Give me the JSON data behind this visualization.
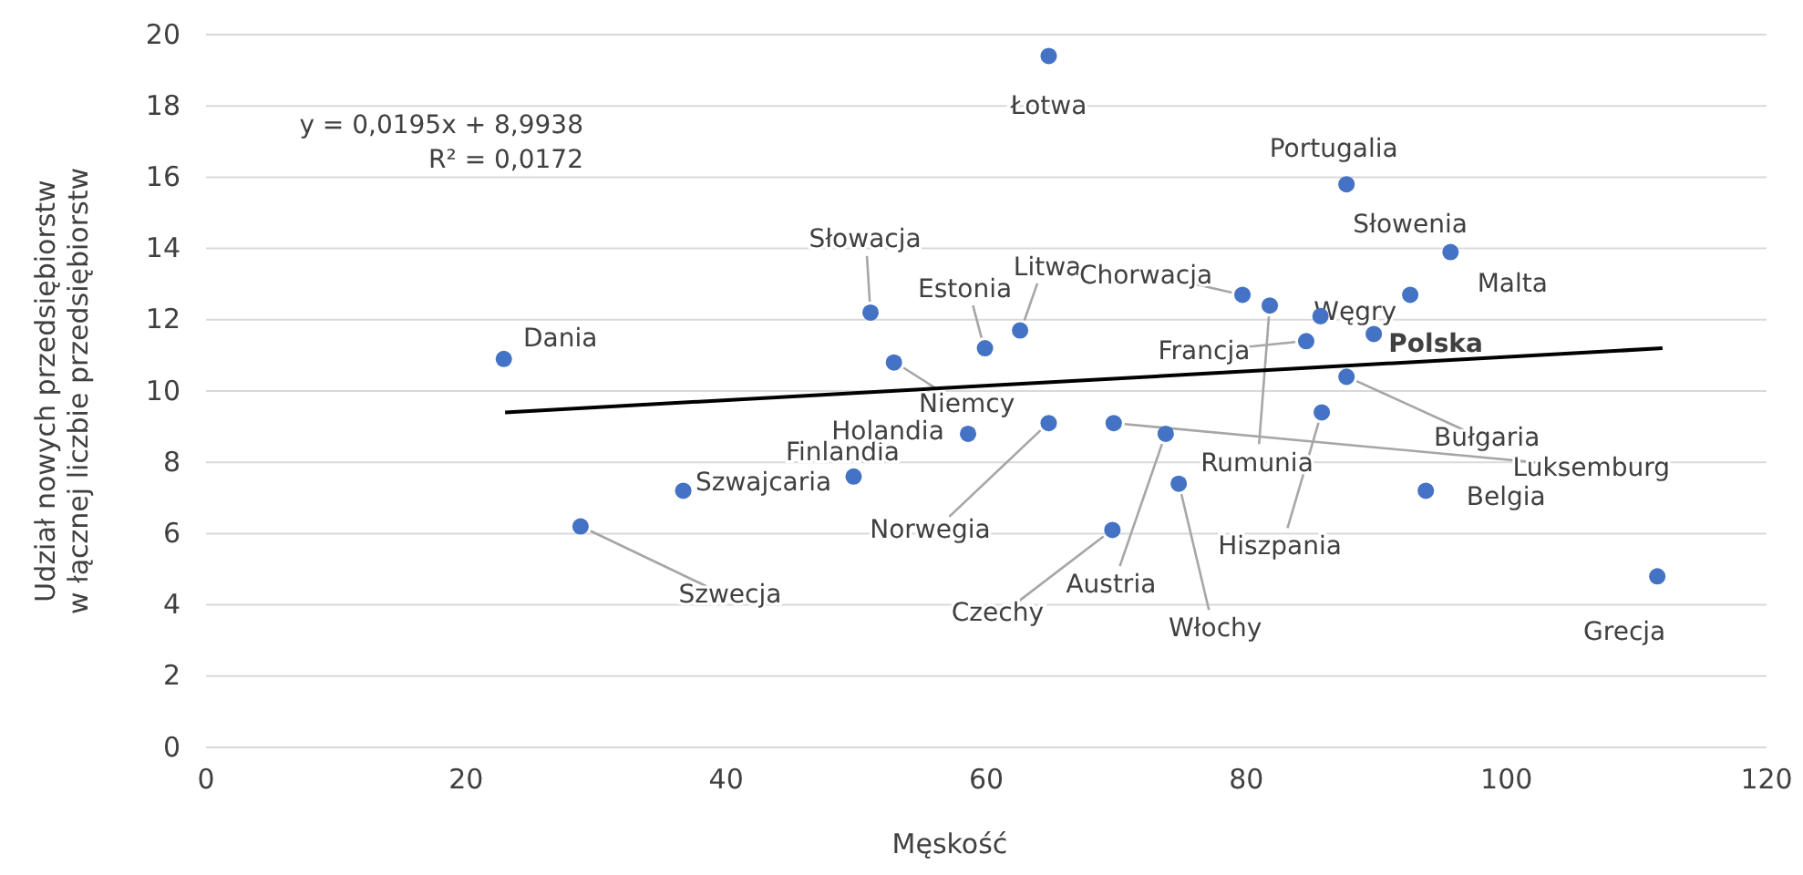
{
  "chart_data": {
    "type": "scatter",
    "xlabel": "Męskość",
    "ylabel": "Udział nowych przedsiębiorstw\nw łącznej liczbie przedsiębiorstw",
    "xlim": [
      0,
      120
    ],
    "xticks": [
      0,
      20,
      40,
      60,
      80,
      100,
      120
    ],
    "ylim": [
      0,
      20
    ],
    "yticks": [
      0,
      2,
      4,
      6,
      8,
      10,
      12,
      14,
      16,
      18,
      20
    ],
    "grid": "y",
    "marker": "circle",
    "series": [
      {
        "color": "#4472c4",
        "x": [
          22.9,
          28.8,
          36.7,
          49.8,
          51.1,
          52.9,
          58.6,
          64.8,
          59.9,
          62.6,
          64.8,
          69.7,
          69.8,
          73.8,
          74.8,
          79.7,
          81.8,
          85.7,
          84.6,
          89.8,
          92.6,
          95.7,
          87.7,
          87.7,
          85.8,
          93.8,
          111.6
        ],
        "values": [
          10.9,
          6.2,
          7.2,
          7.6,
          12.2,
          10.8,
          8.8,
          9.1,
          11.2,
          11.7,
          19.4,
          6.1,
          9.1,
          8.8,
          7.4,
          12.7,
          12.4,
          12.1,
          11.4,
          11.6,
          12.7,
          13.9,
          15.8,
          10.4,
          9.4,
          7.2,
          4.8
        ]
      },
      {
        "type": "line",
        "marker": "none",
        "color": "#000000",
        "x": [
          23,
          112
        ],
        "values": [
          9.4,
          11.2
        ]
      }
    ],
    "annotations": [
      {
        "text": "Dania",
        "x": 22.9,
        "y": 10.9
      },
      {
        "text": "Szwecja",
        "x": 28.8,
        "y": 6.2
      },
      {
        "text": "Szwajcaria",
        "x": 36.7,
        "y": 7.2
      },
      {
        "text": "Finlandia",
        "x": 49.8,
        "y": 7.6
      },
      {
        "text": "Słowacja",
        "x": 51.1,
        "y": 12.2
      },
      {
        "text": "Niemcy",
        "x": 52.9,
        "y": 10.8
      },
      {
        "text": "Holandia",
        "x": 58.6,
        "y": 8.8
      },
      {
        "text": "Norwegia",
        "x": 64.8,
        "y": 9.1
      },
      {
        "text": "Estonia",
        "x": 59.9,
        "y": 11.2
      },
      {
        "text": "Litwa",
        "x": 62.6,
        "y": 11.7
      },
      {
        "text": "Łotwa",
        "x": 64.8,
        "y": 19.4
      },
      {
        "text": "Czechy",
        "x": 69.7,
        "y": 6.1
      },
      {
        "text": "Luksemburg",
        "x": 69.8,
        "y": 9.1
      },
      {
        "text": "Austria",
        "x": 73.8,
        "y": 8.8
      },
      {
        "text": "Włochy",
        "x": 74.8,
        "y": 7.4
      },
      {
        "text": "Chorwacja",
        "x": 79.7,
        "y": 12.7
      },
      {
        "text": "Rumunia",
        "x": 81.8,
        "y": 12.4
      },
      {
        "text": "Węgry",
        "x": 85.7,
        "y": 12.1
      },
      {
        "text": "Francja",
        "x": 84.6,
        "y": 11.4
      },
      {
        "text": "Polska",
        "x": 89.8,
        "y": 11.6
      },
      {
        "text": "Słowenia",
        "x": 92.6,
        "y": 12.7
      },
      {
        "text": "Malta",
        "x": 95.7,
        "y": 13.9
      },
      {
        "text": "Portugalia",
        "x": 87.7,
        "y": 15.8
      },
      {
        "text": "Bułgaria",
        "x": 87.7,
        "y": 10.4
      },
      {
        "text": "Hiszpania",
        "x": 85.8,
        "y": 9.4
      },
      {
        "text": "Belgia",
        "x": 93.8,
        "y": 7.2
      },
      {
        "text": "Grecja",
        "x": 111.6,
        "y": 4.8
      },
      "y = 0,0195x + 8,9938",
      "R² = 0,0172"
    ]
  }
}
